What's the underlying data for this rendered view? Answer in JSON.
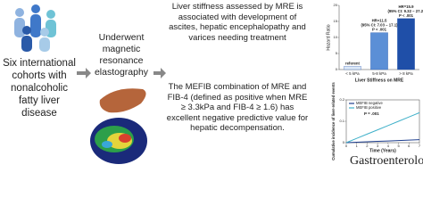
{
  "cohort_text": "Six international cohorts with nonalcoholic fatty liver disease",
  "mre_text": "Underwent magnetic resonance elastography",
  "finding_1": "Liver stiffness assessed by MRE is associated with development of ascites, hepatic encephalopathy and varices needing treatment",
  "finding_2": "The MEFIB combination of MRE and FIB-4 (defined as positive when MRE ≥ 3.3kPa and FIB-4 ≥ 1.6) has excellent negative predictive value for hepatic decompensation.",
  "brand": "Gastroenterology",
  "chart_data": [
    {
      "type": "bar",
      "ylabel": "Hazard Ratio",
      "xlabel": "Liver Stiffness on MRE",
      "categories": [
        "< 5 kPa",
        "5-8 kPa",
        "> 8 kPa"
      ],
      "values": [
        1,
        11.5,
        15.9
      ],
      "colors": [
        "#dbe8f7",
        "#5b8fd6",
        "#1f4fa8"
      ],
      "bar_labels": [
        [
          "referent"
        ],
        [
          "HR=11.5",
          "(95% CI: 7.03 – 17.1)",
          "P < .001"
        ],
        [
          "HR=15.9",
          "(95% CI: 9.32 – 27.2)",
          "P < .001"
        ]
      ],
      "ylim": [
        0,
        20
      ],
      "yticks": [
        0,
        5,
        10,
        15,
        20
      ]
    },
    {
      "type": "line",
      "ylabel": "Cumulative incidence of liver-related events",
      "xlabel": "Time (Years)",
      "x": [
        0,
        1,
        2,
        3,
        4,
        5,
        6,
        7
      ],
      "xlim": [
        0,
        7
      ],
      "xticks": [
        0,
        1,
        2,
        3,
        4,
        5,
        6,
        7
      ],
      "ylim": [
        0,
        0.2
      ],
      "yticks": [
        0,
        0.1,
        0.2
      ],
      "annotation": "P = .001",
      "series": [
        {
          "name": "MEFIB negative",
          "color": "#1f3f8f",
          "values": [
            0,
            0.002,
            0.004,
            0.006,
            0.008,
            0.01,
            0.012,
            0.014
          ]
        },
        {
          "name": "MEFIB positive",
          "color": "#3fb0c9",
          "values": [
            0,
            0.02,
            0.04,
            0.06,
            0.08,
            0.1,
            0.12,
            0.14
          ]
        }
      ]
    }
  ]
}
